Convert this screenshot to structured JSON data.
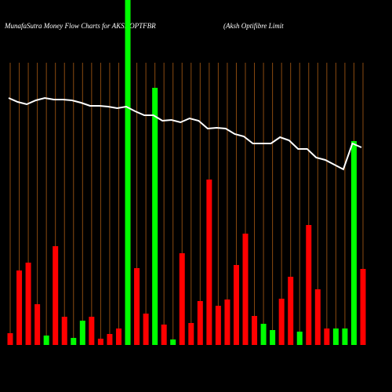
{
  "chart_data": {
    "type": "bar",
    "title": "MunafaSutra  Money Flow  Charts for AKSHOPTFBR",
    "subtitle": "(Aksh Optifibre  Limit",
    "ylim": [
      0,
      440
    ],
    "grid": true,
    "grid_color": "#8a4a10",
    "background": "#000000",
    "series": [
      {
        "name": "money-flow",
        "values": [
          15,
          95,
          105,
          52,
          12,
          126,
          36,
          9,
          31,
          36,
          8,
          14,
          21,
          440,
          98,
          40,
          328,
          26,
          7,
          117,
          28,
          56,
          211,
          50,
          58,
          102,
          142,
          37,
          27,
          19,
          59,
          87,
          17,
          153,
          71,
          21,
          21,
          21,
          260,
          97
        ],
        "colors": [
          "#ff0000",
          "#ff0000",
          "#ff0000",
          "#ff0000",
          "#00ff00",
          "#ff0000",
          "#ff0000",
          "#00ff00",
          "#00ff00",
          "#ff0000",
          "#ff0000",
          "#ff0000",
          "#ff0000",
          "#00ff00",
          "#ff0000",
          "#ff0000",
          "#00ff00",
          "#ff0000",
          "#00ff00",
          "#ff0000",
          "#ff0000",
          "#ff0000",
          "#ff0000",
          "#ff0000",
          "#ff0000",
          "#ff0000",
          "#ff0000",
          "#ff0000",
          "#00ff00",
          "#00ff00",
          "#ff0000",
          "#ff0000",
          "#00ff00",
          "#ff0000",
          "#ff0000",
          "#ff0000",
          "#00ff00",
          "#00ff00",
          "#00ff00",
          "#ff0000"
        ]
      },
      {
        "name": "price",
        "type": "line",
        "color": "#ffffff",
        "values": [
          315,
          310,
          307,
          312,
          315,
          313,
          313,
          312,
          309,
          305,
          305,
          304,
          302,
          304,
          298,
          293,
          293,
          286,
          287,
          284,
          289,
          286,
          276,
          277,
          276,
          269,
          266,
          257,
          257,
          257,
          265,
          261,
          250,
          250,
          239,
          236,
          230,
          224,
          257,
          252
        ]
      }
    ]
  }
}
